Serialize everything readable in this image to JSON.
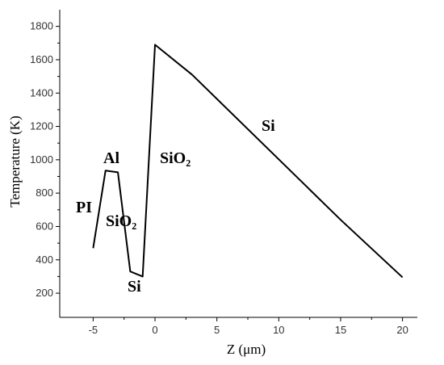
{
  "chart_data": {
    "type": "line",
    "x_label": "Z (μm)",
    "y_label": "Temperature (K)",
    "x": [
      -5,
      -4,
      -3,
      -2,
      -1,
      0,
      3,
      15,
      20
    ],
    "series": [
      {
        "color": "#000000",
        "values": [
          470,
          935,
          925,
          330,
          300,
          1690,
          1510,
          640,
          295
        ]
      }
    ],
    "xlim": [
      -7.7,
      21.2
    ],
    "xticks": [
      -5,
      0,
      5,
      10,
      15,
      20
    ],
    "ylim": [
      55,
      1900
    ],
    "yticks": [
      200,
      400,
      600,
      800,
      1000,
      1200,
      1400,
      1600,
      1800
    ],
    "annotations": [
      "PI",
      "Al",
      "SiO₂",
      "Si",
      "SiO₂",
      "Si"
    ]
  }
}
